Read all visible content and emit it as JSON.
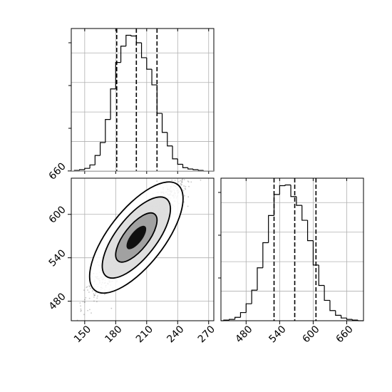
{
  "chart_data": [
    {
      "type": "histogram",
      "panel": "top-left marginal",
      "variable": "x",
      "bins": [
        {
          "x0": 140,
          "x1": 145,
          "count": 1
        },
        {
          "x0": 145,
          "x1": 150,
          "count": 2
        },
        {
          "x0": 150,
          "x1": 155,
          "count": 4
        },
        {
          "x0": 155,
          "x1": 160,
          "count": 9
        },
        {
          "x0": 160,
          "x1": 165,
          "count": 23
        },
        {
          "x0": 165,
          "x1": 170,
          "count": 42
        },
        {
          "x0": 170,
          "x1": 175,
          "count": 76
        },
        {
          "x0": 175,
          "x1": 180,
          "count": 121
        },
        {
          "x0": 180,
          "x1": 185,
          "count": 160
        },
        {
          "x0": 185,
          "x1": 190,
          "count": 184
        },
        {
          "x0": 190,
          "x1": 195,
          "count": 200
        },
        {
          "x0": 195,
          "x1": 200,
          "count": 199
        },
        {
          "x0": 200,
          "x1": 205,
          "count": 189
        },
        {
          "x0": 205,
          "x1": 210,
          "count": 167
        },
        {
          "x0": 210,
          "x1": 215,
          "count": 150
        },
        {
          "x0": 215,
          "x1": 220,
          "count": 127
        },
        {
          "x0": 220,
          "x1": 225,
          "count": 85
        },
        {
          "x0": 225,
          "x1": 230,
          "count": 57
        },
        {
          "x0": 230,
          "x1": 235,
          "count": 37
        },
        {
          "x0": 235,
          "x1": 240,
          "count": 18
        },
        {
          "x0": 240,
          "x1": 245,
          "count": 10
        },
        {
          "x0": 245,
          "x1": 250,
          "count": 5
        },
        {
          "x0": 250,
          "x1": 255,
          "count": 3
        },
        {
          "x0": 255,
          "x1": 260,
          "count": 2
        },
        {
          "x0": 260,
          "x1": 265,
          "count": 1
        }
      ],
      "quantile_lines": [
        181,
        200,
        220
      ],
      "xlim": [
        137,
        275
      ],
      "ylim": [
        0,
        210
      ],
      "grid": true
    },
    {
      "type": "scatter",
      "panel": "bottom-left joint",
      "variables": [
        "x",
        "y"
      ],
      "mean": [
        200,
        568
      ],
      "std": [
        19.5,
        34
      ],
      "correlation": 0.93,
      "contour_levels": [
        {
          "name": "outer",
          "center": [
            200,
            568
          ],
          "width": 104,
          "height": 182,
          "angle_deg": 52
        },
        {
          "name": "middle",
          "center": [
            200,
            568
          ],
          "width": 76,
          "height": 132,
          "angle_deg": 52
        },
        {
          "name": "inner",
          "center": [
            200,
            568
          ],
          "width": 46,
          "height": 80,
          "angle_deg": 52
        },
        {
          "name": "core",
          "center": [
            200,
            568
          ],
          "width": 22,
          "height": 38,
          "angle_deg": 52
        }
      ],
      "xlim": [
        137,
        275
      ],
      "ylim": [
        453,
        650
      ],
      "x_ticks": [
        "150",
        "180",
        "210",
        "240",
        "270"
      ],
      "x_tick_values": [
        150,
        180,
        210,
        240,
        270
      ],
      "y_ticks": [
        "480",
        "540",
        "600",
        "660"
      ],
      "y_tick_values": [
        480,
        540,
        600,
        660
      ],
      "grid": true
    },
    {
      "type": "histogram",
      "panel": "bottom-right marginal",
      "variable": "y",
      "bins": [
        {
          "x0": 440,
          "x1": 450,
          "count": 1
        },
        {
          "x0": 450,
          "x1": 460,
          "count": 2
        },
        {
          "x0": 460,
          "x1": 470,
          "count": 5
        },
        {
          "x0": 470,
          "x1": 480,
          "count": 12
        },
        {
          "x0": 480,
          "x1": 490,
          "count": 25
        },
        {
          "x0": 490,
          "x1": 500,
          "count": 45
        },
        {
          "x0": 500,
          "x1": 510,
          "count": 78
        },
        {
          "x0": 510,
          "x1": 520,
          "count": 115
        },
        {
          "x0": 520,
          "x1": 530,
          "count": 155
        },
        {
          "x0": 530,
          "x1": 540,
          "count": 186
        },
        {
          "x0": 540,
          "x1": 550,
          "count": 199
        },
        {
          "x0": 550,
          "x1": 560,
          "count": 200
        },
        {
          "x0": 560,
          "x1": 570,
          "count": 183
        },
        {
          "x0": 570,
          "x1": 580,
          "count": 170
        },
        {
          "x0": 580,
          "x1": 590,
          "count": 148
        },
        {
          "x0": 590,
          "x1": 600,
          "count": 118
        },
        {
          "x0": 600,
          "x1": 610,
          "count": 82
        },
        {
          "x0": 610,
          "x1": 620,
          "count": 52
        },
        {
          "x0": 620,
          "x1": 630,
          "count": 30
        },
        {
          "x0": 630,
          "x1": 640,
          "count": 15
        },
        {
          "x0": 640,
          "x1": 650,
          "count": 8
        },
        {
          "x0": 650,
          "x1": 660,
          "count": 4
        },
        {
          "x0": 660,
          "x1": 670,
          "count": 2
        },
        {
          "x0": 670,
          "x1": 680,
          "count": 1
        }
      ],
      "quantile_lines": [
        530,
        567,
        605
      ],
      "xlim": [
        435,
        690
      ],
      "ylim": [
        0,
        210
      ],
      "x_ticks": [
        "480",
        "540",
        "600",
        "660"
      ],
      "x_tick_values": [
        480,
        540,
        600,
        660
      ],
      "grid": true
    }
  ]
}
